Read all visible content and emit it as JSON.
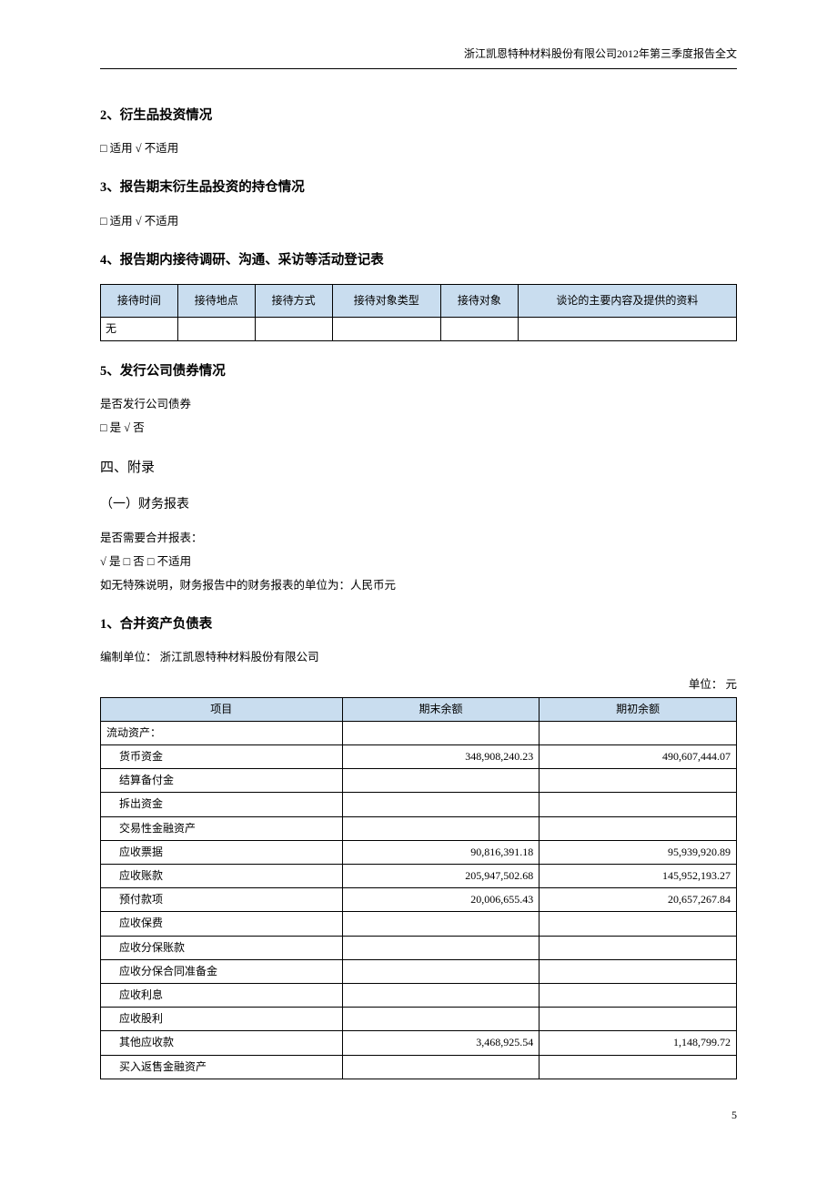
{
  "header": {
    "title": "浙江凯恩特种材料股份有限公司2012年第三季度报告全文"
  },
  "s2": {
    "title": "2、衍生品投资情况",
    "text": "□ 适用 √ 不适用"
  },
  "s3": {
    "title": "3、报告期末衍生品投资的持仓情况",
    "text": "□ 适用 √ 不适用"
  },
  "s4": {
    "title": "4、报告期内接待调研、沟通、采访等活动登记表",
    "headers": [
      "接待时间",
      "接待地点",
      "接待方式",
      "接待对象类型",
      "接待对象",
      "谈论的主要内容及提供的资料"
    ],
    "row0": "无"
  },
  "s5": {
    "title": "5、发行公司债券情况",
    "text1": "是否发行公司债券",
    "text2": "□ 是 √ 否"
  },
  "appendix": {
    "title": "四、附录",
    "sub1": "（一）财务报表",
    "text1": "是否需要合并报表：",
    "text2": "√ 是 □ 否 □ 不适用",
    "text3": "如无特殊说明，财务报告中的财务报表的单位为：人民币元"
  },
  "balance": {
    "title": "1、合并资产负债表",
    "preparer": "编制单位：  浙江凯恩特种材料股份有限公司",
    "unit": "单位：  元",
    "headers": [
      "项目",
      "期末余额",
      "期初余额"
    ],
    "col_widths": [
      "38%",
      "31%",
      "31%"
    ],
    "header_bg": "#c9ddef",
    "rows": [
      {
        "label": "流动资产：",
        "end": "",
        "begin": "",
        "indent": false
      },
      {
        "label": "货币资金",
        "end": "348,908,240.23",
        "begin": "490,607,444.07",
        "indent": true
      },
      {
        "label": "结算备付金",
        "end": "",
        "begin": "",
        "indent": true
      },
      {
        "label": "拆出资金",
        "end": "",
        "begin": "",
        "indent": true
      },
      {
        "label": "交易性金融资产",
        "end": "",
        "begin": "",
        "indent": true
      },
      {
        "label": "应收票据",
        "end": "90,816,391.18",
        "begin": "95,939,920.89",
        "indent": true
      },
      {
        "label": "应收账款",
        "end": "205,947,502.68",
        "begin": "145,952,193.27",
        "indent": true
      },
      {
        "label": "预付款项",
        "end": "20,006,655.43",
        "begin": "20,657,267.84",
        "indent": true
      },
      {
        "label": "应收保费",
        "end": "",
        "begin": "",
        "indent": true
      },
      {
        "label": "应收分保账款",
        "end": "",
        "begin": "",
        "indent": true
      },
      {
        "label": "应收分保合同准备金",
        "end": "",
        "begin": "",
        "indent": true
      },
      {
        "label": "应收利息",
        "end": "",
        "begin": "",
        "indent": true
      },
      {
        "label": "应收股利",
        "end": "",
        "begin": "",
        "indent": true
      },
      {
        "label": "其他应收款",
        "end": "3,468,925.54",
        "begin": "1,148,799.72",
        "indent": true
      },
      {
        "label": "买入返售金融资产",
        "end": "",
        "begin": "",
        "indent": true
      }
    ]
  },
  "page_num": "5"
}
